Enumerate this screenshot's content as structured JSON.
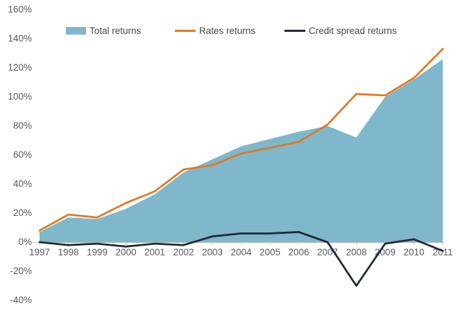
{
  "chart_data": {
    "type": "area",
    "title": "",
    "xlabel": "",
    "ylabel": "",
    "grid": false,
    "legend_position": "top",
    "x": [
      1997,
      1998,
      1999,
      2000,
      2001,
      2002,
      2003,
      2004,
      2005,
      2006,
      2007,
      2008,
      2009,
      2010,
      2011
    ],
    "series": [
      {
        "name": "Total returns",
        "type": "area",
        "color": "#7FB7CB",
        "values": [
          7,
          17,
          16,
          23,
          33,
          48,
          57,
          66,
          71,
          76,
          80,
          72,
          100,
          112,
          126
        ]
      },
      {
        "name": "Rates returns",
        "type": "line",
        "color": "#DE7A22",
        "values": [
          8,
          19,
          17,
          27,
          35,
          50,
          53,
          61,
          65,
          69,
          81,
          102,
          101,
          113,
          133
        ]
      },
      {
        "name": "Credit spread returns",
        "type": "line",
        "color": "#1F2A36",
        "values": [
          0,
          -2,
          -1,
          -3,
          -1,
          -2,
          4,
          6,
          6,
          7,
          0,
          -30,
          -1,
          2,
          -6
        ]
      }
    ],
    "y_axis": {
      "min": -40,
      "max": 160,
      "step": 20,
      "unit": "%",
      "ticks": [
        {
          "label": "160%",
          "value": 160
        },
        {
          "label": "140%",
          "value": 140
        },
        {
          "label": "120%",
          "value": 120
        },
        {
          "label": "100%",
          "value": 100
        },
        {
          "label": "80%",
          "value": 80
        },
        {
          "label": "60%",
          "value": 60
        },
        {
          "label": "40%",
          "value": 40
        },
        {
          "label": "20%",
          "value": 20
        },
        {
          "label": "0%",
          "value": 0
        },
        {
          "label": "-20%",
          "value": -20
        },
        {
          "label": "-40%",
          "value": -40
        }
      ]
    },
    "x_axis": {
      "labels": [
        "1997",
        "1998",
        "1999",
        "2000",
        "2001",
        "2002",
        "2003",
        "2004",
        "2005",
        "2006",
        "2007",
        "2008",
        "2009",
        "2010",
        "2011"
      ],
      "line_color": "#BFBFBF"
    }
  },
  "legend": {
    "items": [
      {
        "label": "Total returns",
        "swatch": "area",
        "color": "#7FB7CB"
      },
      {
        "label": "Rates returns",
        "swatch": "line",
        "color": "#DE7A22"
      },
      {
        "label": "Credit spread returns",
        "swatch": "line",
        "color": "#1F2A36"
      }
    ]
  },
  "colors": {
    "background": "#FFFFFF",
    "axis_text": "#595959",
    "legend_text": "#474747",
    "axis_line": "#BFBFBF"
  }
}
